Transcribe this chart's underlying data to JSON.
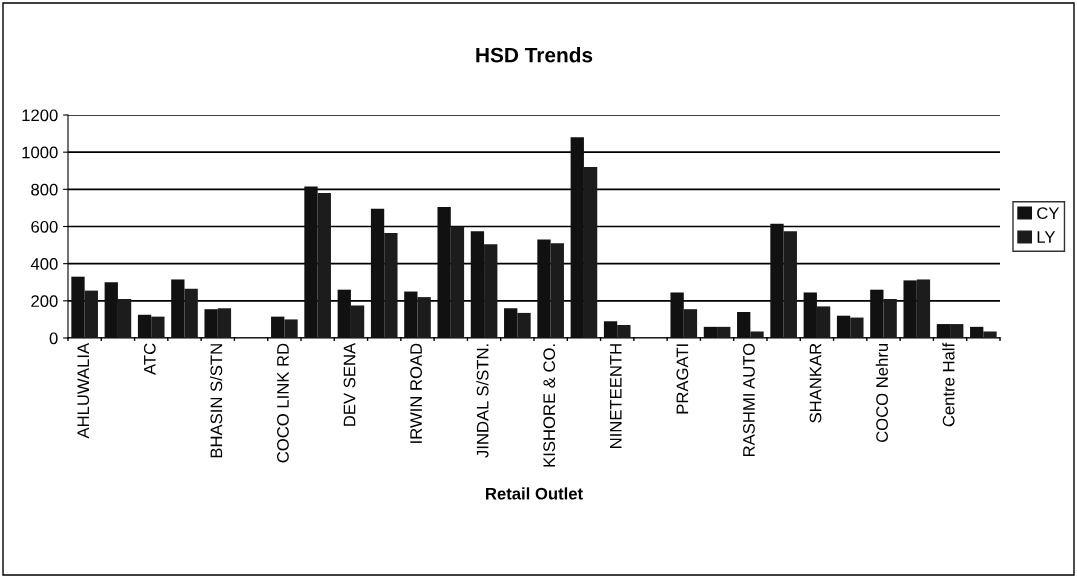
{
  "chart_data": {
    "type": "bar",
    "title": "HSD Trends",
    "xlabel": "Retail Outlet",
    "categories": [
      "AHLUWALIA",
      null,
      "ATC",
      null,
      "BHASIN S/STN",
      null,
      "COCO LINK RD",
      null,
      "DEV SENA",
      null,
      "IRWIN ROAD",
      null,
      "JINDAL S/STN.",
      null,
      "KISHORE & CO.",
      null,
      "NINETEENTH",
      null,
      "PRAGATI",
      null,
      "RASHMI AUTO",
      null,
      "SHANKAR",
      null,
      "COCO Nehru",
      null,
      "Centre Half",
      null
    ],
    "series": [
      {
        "name": "CY",
        "color": "#111111",
        "values": [
          330,
          300,
          125,
          315,
          155,
          null,
          115,
          815,
          260,
          695,
          250,
          705,
          575,
          160,
          530,
          1080,
          90,
          null,
          245,
          60,
          140,
          615,
          245,
          120,
          260,
          310,
          75,
          60
        ]
      },
      {
        "name": "LY",
        "color": "#1c1c1c",
        "values": [
          255,
          210,
          115,
          265,
          160,
          null,
          100,
          780,
          175,
          565,
          220,
          600,
          505,
          135,
          510,
          920,
          70,
          null,
          155,
          60,
          35,
          575,
          170,
          110,
          210,
          315,
          75,
          35
        ]
      }
    ],
    "ylim": [
      0,
      1200
    ],
    "yticks": [
      0,
      200,
      400,
      600,
      800,
      1000,
      1200
    ],
    "grid": "y",
    "legend": "right"
  }
}
